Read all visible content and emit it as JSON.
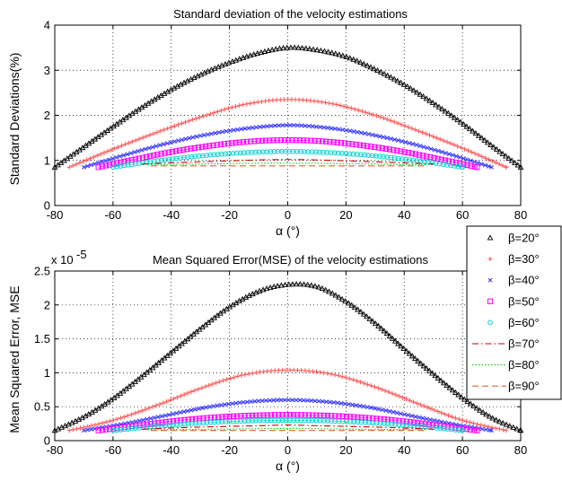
{
  "chart_data": [
    {
      "type": "line",
      "title": "Standard deviation of the velocity estimations",
      "xlabel": "α (°)",
      "ylabel": "Standard Deviations(%)",
      "xlim": [
        -80,
        80
      ],
      "ylim": [
        0,
        4
      ],
      "xticks": [
        "-80",
        "-60",
        "-40",
        "-20",
        "0",
        "20",
        "40",
        "60",
        "80"
      ],
      "yticks": [
        "0",
        "1",
        "2",
        "3",
        "4"
      ],
      "grid": true,
      "series": [
        {
          "name": "β=20°",
          "marker": "triangle",
          "color": "#000000",
          "x": [
            -80,
            -70,
            -60,
            -50,
            -40,
            -30,
            -20,
            -10,
            0,
            10,
            20,
            30,
            40,
            50,
            60,
            70,
            80
          ],
          "y": [
            0.85,
            1.3,
            1.75,
            2.18,
            2.57,
            2.9,
            3.17,
            3.38,
            3.5,
            3.45,
            3.3,
            3.02,
            2.68,
            2.27,
            1.82,
            1.33,
            0.85
          ]
        },
        {
          "name": "β=30°",
          "marker": "plus",
          "color": "#ff5555",
          "x": [
            -75,
            -60,
            -45,
            -30,
            -15,
            0,
            15,
            30,
            45,
            60,
            75
          ],
          "y": [
            0.85,
            1.25,
            1.62,
            1.96,
            2.24,
            2.35,
            2.26,
            2.0,
            1.65,
            1.27,
            0.85
          ]
        },
        {
          "name": "β=40°",
          "marker": "cross",
          "color": "#3333ff",
          "x": [
            -70,
            -56,
            -42,
            -28,
            -14,
            0,
            14,
            28,
            42,
            56,
            70
          ],
          "y": [
            0.85,
            1.12,
            1.37,
            1.57,
            1.71,
            1.78,
            1.72,
            1.58,
            1.38,
            1.13,
            0.85
          ]
        },
        {
          "name": "β=50°",
          "marker": "square",
          "color": "#ff00ff",
          "x": [
            -65,
            -52,
            -39,
            -26,
            -13,
            0,
            13,
            26,
            39,
            52,
            65
          ],
          "y": [
            0.85,
            1.03,
            1.2,
            1.33,
            1.42,
            1.45,
            1.42,
            1.33,
            1.2,
            1.03,
            0.85
          ]
        },
        {
          "name": "β=60°",
          "marker": "circle",
          "color": "#00d0d0",
          "x": [
            -60,
            -45,
            -30,
            -15,
            0,
            15,
            30,
            45,
            60
          ],
          "y": [
            0.85,
            0.99,
            1.1,
            1.17,
            1.2,
            1.17,
            1.1,
            0.99,
            0.85
          ]
        },
        {
          "name": "β=70°",
          "marker": "dashdot",
          "color": "#cc0000",
          "x": [
            -50,
            -30,
            -10,
            0,
            10,
            30,
            50
          ],
          "y": [
            0.92,
            0.97,
            1.01,
            1.02,
            1.01,
            0.97,
            0.92
          ]
        },
        {
          "name": "β=80°",
          "marker": "dotted",
          "color": "#00cc00",
          "x": [
            -48,
            -20,
            0,
            20,
            48
          ],
          "y": [
            0.9,
            0.93,
            0.94,
            0.93,
            0.9
          ]
        },
        {
          "name": "β=90°",
          "marker": "dashed",
          "color": "#dd6633",
          "x": [
            -47,
            47
          ],
          "y": [
            0.88,
            0.88
          ]
        }
      ]
    },
    {
      "type": "line",
      "title": "Mean Squared Error(MSE) of the velocity estimations",
      "xlabel": "α (°)",
      "ylabel": "Mean Squared Error, MSE",
      "y_multiplier": "x 10",
      "y_exponent": "-5",
      "xlim": [
        -80,
        80
      ],
      "ylim": [
        0,
        2.5
      ],
      "xticks": [
        "-80",
        "-60",
        "-40",
        "-20",
        "0",
        "20",
        "40",
        "60",
        "80"
      ],
      "yticks": [
        "0",
        "0.5",
        "1",
        "1.5",
        "2",
        "2.5"
      ],
      "grid": true,
      "legend_position": "right",
      "series": [
        {
          "name": "β=20°",
          "marker": "triangle",
          "color": "#000000",
          "x": [
            -80,
            -70,
            -60,
            -50,
            -40,
            -30,
            -20,
            -10,
            0,
            10,
            20,
            30,
            40,
            50,
            60,
            70,
            80
          ],
          "y": [
            0.15,
            0.35,
            0.62,
            0.95,
            1.3,
            1.65,
            1.97,
            2.2,
            2.3,
            2.27,
            2.05,
            1.73,
            1.35,
            0.98,
            0.63,
            0.34,
            0.15
          ]
        },
        {
          "name": "β=30°",
          "marker": "plus",
          "color": "#ff5555",
          "x": [
            -75,
            -60,
            -45,
            -30,
            -15,
            0,
            15,
            30,
            45,
            60,
            75
          ],
          "y": [
            0.15,
            0.3,
            0.52,
            0.77,
            0.97,
            1.04,
            0.98,
            0.79,
            0.54,
            0.3,
            0.15
          ]
        },
        {
          "name": "β=40°",
          "marker": "cross",
          "color": "#3333ff",
          "x": [
            -70,
            -56,
            -42,
            -28,
            -14,
            0,
            14,
            28,
            42,
            56,
            70
          ],
          "y": [
            0.15,
            0.25,
            0.37,
            0.49,
            0.57,
            0.6,
            0.57,
            0.49,
            0.37,
            0.25,
            0.15
          ]
        },
        {
          "name": "β=50°",
          "marker": "square",
          "color": "#ff00ff",
          "x": [
            -65,
            -52,
            -39,
            -26,
            -13,
            0,
            13,
            26,
            39,
            52,
            65
          ],
          "y": [
            0.15,
            0.22,
            0.29,
            0.34,
            0.37,
            0.38,
            0.37,
            0.34,
            0.29,
            0.22,
            0.15
          ]
        },
        {
          "name": "β=60°",
          "marker": "circle",
          "color": "#00d0d0",
          "x": [
            -60,
            -45,
            -30,
            -15,
            0,
            15,
            30,
            45,
            60
          ],
          "y": [
            0.15,
            0.21,
            0.26,
            0.29,
            0.3,
            0.29,
            0.26,
            0.21,
            0.15
          ]
        },
        {
          "name": "β=70°",
          "marker": "dashdot",
          "color": "#cc0000",
          "x": [
            -50,
            -30,
            -10,
            0,
            10,
            30,
            50
          ],
          "y": [
            0.17,
            0.2,
            0.22,
            0.23,
            0.22,
            0.2,
            0.17
          ]
        },
        {
          "name": "β=80°",
          "marker": "dotted",
          "color": "#00cc00",
          "x": [
            -48,
            -20,
            0,
            20,
            48
          ],
          "y": [
            0.16,
            0.17,
            0.18,
            0.17,
            0.16
          ]
        },
        {
          "name": "β=90°",
          "marker": "dashed",
          "color": "#dd6633",
          "x": [
            -47,
            47
          ],
          "y": [
            0.15,
            0.15
          ]
        }
      ]
    }
  ]
}
